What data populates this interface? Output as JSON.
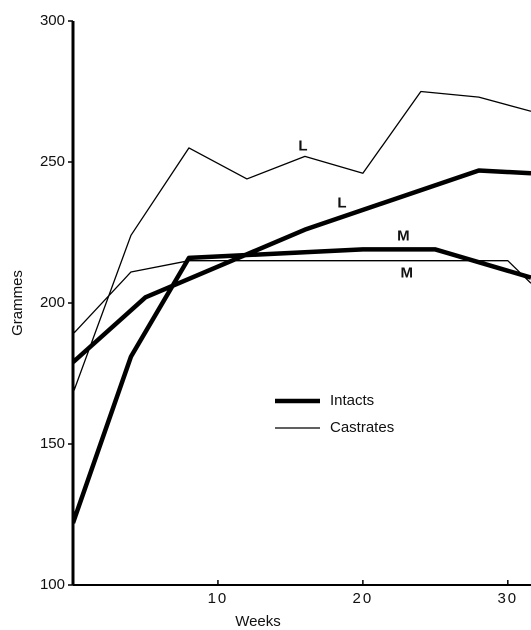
{
  "chart_data": {
    "type": "line",
    "x_label": "Weeks",
    "y_label": "Grammes",
    "xlim": [
      0,
      31.6
    ],
    "xticks": [
      10,
      20,
      30
    ],
    "ylim": [
      100,
      300
    ],
    "yticks": [
      100,
      150,
      200,
      250,
      300
    ],
    "legend": "center",
    "series": [
      {
        "name": "Intacts",
        "color": "#000000",
        "width": 4.5,
        "curves": [
          {
            "label": "L",
            "x": [
              0,
              5,
              16,
              28,
              31.6
            ],
            "values": [
              179,
              202,
              226,
              247,
              246
            ]
          },
          {
            "label": "M",
            "x": [
              0,
              4,
              8,
              20,
              25,
              31.6
            ],
            "values": [
              122,
              181,
              216,
              219,
              219,
              209
            ]
          }
        ]
      },
      {
        "name": "Castrates",
        "color": "#000000",
        "width": 1.3,
        "curves": [
          {
            "label": "L",
            "x": [
              0,
              4,
              8,
              12,
              16,
              20,
              24,
              28,
              31.6
            ],
            "values": [
              168,
              224,
              255,
              244,
              252,
              246,
              275,
              273,
              268
            ]
          },
          {
            "label": "M",
            "x": [
              0,
              4,
              8,
              30,
              31.6
            ],
            "values": [
              189,
              211,
              215,
              215,
              207
            ]
          }
        ]
      }
    ]
  }
}
